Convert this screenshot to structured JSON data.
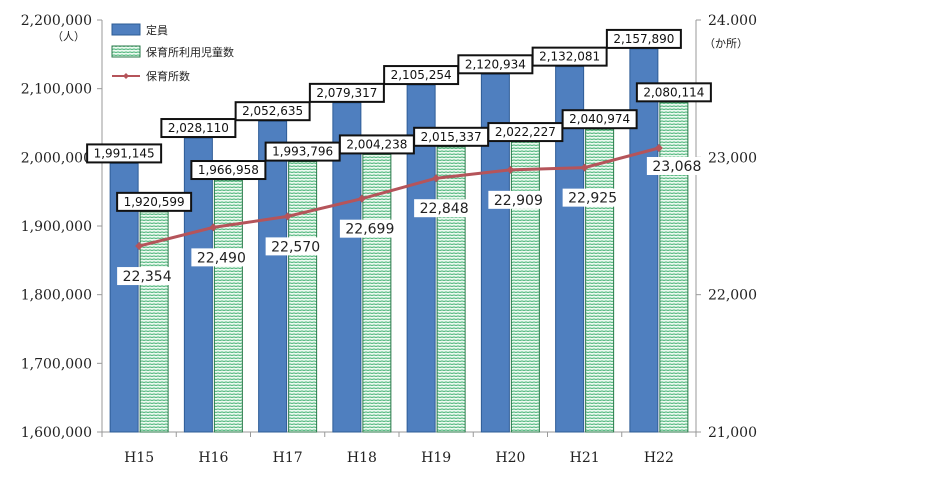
{
  "chart_data": {
    "type": "bar",
    "categories": [
      "H15",
      "H16",
      "H17",
      "H18",
      "H19",
      "H20",
      "H21",
      "H22"
    ],
    "series": [
      {
        "name": "定員",
        "kind": "bar",
        "axis": "left",
        "color": "#4f7fbf",
        "values": [
          1991145,
          2028110,
          2052635,
          2079317,
          2105254,
          2120934,
          2132081,
          2157890
        ],
        "labels": [
          "1,991,145",
          "2,028,110",
          "2,052,635",
          "2,079,317",
          "2,105,254",
          "2,120,934",
          "2,132,081",
          "2,157,890"
        ]
      },
      {
        "name": "保育所利用児童数",
        "kind": "bar",
        "axis": "left",
        "color": "#c9ecd5",
        "values": [
          1920599,
          1966958,
          1993796,
          2004238,
          2015337,
          2022227,
          2040974,
          2080114
        ],
        "labels": [
          "1,920,599",
          "1,966,958",
          "1,993,796",
          "2,004,238",
          "2,015,337",
          "2,022,227",
          "2,040,974",
          "2,080,114"
        ]
      },
      {
        "name": "保育所数",
        "kind": "line",
        "axis": "right",
        "color": "#b5545a",
        "values": [
          22354,
          22490,
          22570,
          22699,
          22848,
          22909,
          22925,
          23068
        ],
        "labels": [
          "22,354",
          "22,490",
          "22,570",
          "22,699",
          "22,848",
          "22,909",
          "22,925",
          "23,068"
        ]
      }
    ],
    "left_axis": {
      "min": 1600000,
      "max": 2200000,
      "unit": "（人）",
      "ticks": [
        1600000,
        1700000,
        1800000,
        1900000,
        2000000,
        2100000,
        2200000
      ],
      "tick_labels": [
        "1,600,000",
        "1,700,000",
        "1,800,000",
        "1,900,000",
        "2,000,000",
        "2,100,000",
        "2,200,000"
      ]
    },
    "right_axis": {
      "min": 21000,
      "max": 24000,
      "unit": "（か所）",
      "ticks": [
        21000,
        22000,
        23000,
        24000
      ],
      "tick_labels": [
        "21,000",
        "22,000",
        "23,000",
        "24.000"
      ]
    },
    "legend_position": "top-left",
    "grid": false
  }
}
